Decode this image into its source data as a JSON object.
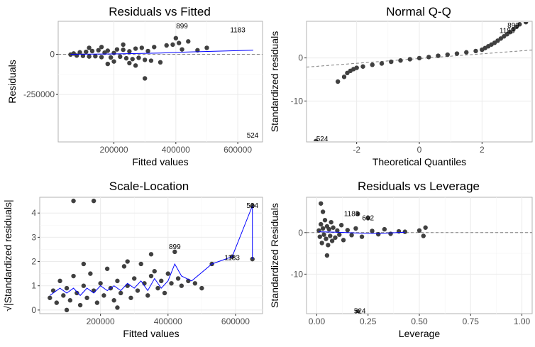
{
  "colors": {
    "points": "#404040",
    "smooth": "#0000ff",
    "reference": "#7f7f7f",
    "grid": "#ebebeb",
    "panel_border": "#b3b3b3"
  },
  "chart_data": [
    {
      "type": "scatter",
      "title": "Residuals vs Fitted",
      "xlabel": "Fitted values",
      "ylabel": "Residuals",
      "xlim": [
        20000,
        680000
      ],
      "ylim": [
        -545000,
        205000
      ],
      "xticks": [
        200000,
        400000,
        600000
      ],
      "yticks": [
        -250000,
        0
      ],
      "grid": true,
      "reference": {
        "kind": "hline",
        "y": 0
      },
      "points": [
        [
          60000,
          -2000
        ],
        [
          70000,
          5000
        ],
        [
          80000,
          -8000
        ],
        [
          90000,
          12000
        ],
        [
          100000,
          -10000
        ],
        [
          110000,
          15000
        ],
        [
          120000,
          -14000
        ],
        [
          130000,
          20000
        ],
        [
          140000,
          -12000
        ],
        [
          150000,
          25000
        ],
        [
          160000,
          -18000
        ],
        [
          170000,
          10000
        ],
        [
          180000,
          22000
        ],
        [
          190000,
          -20000
        ],
        [
          200000,
          8000
        ],
        [
          210000,
          30000
        ],
        [
          220000,
          -15000
        ],
        [
          230000,
          28000
        ],
        [
          240000,
          -25000
        ],
        [
          250000,
          18000
        ],
        [
          260000,
          -30000
        ],
        [
          270000,
          35000
        ],
        [
          280000,
          -22000
        ],
        [
          290000,
          40000
        ],
        [
          300000,
          -35000
        ],
        [
          310000,
          20000
        ],
        [
          320000,
          -40000
        ],
        [
          330000,
          45000
        ],
        [
          350000,
          -50000
        ],
        [
          370000,
          55000
        ],
        [
          390000,
          60000
        ],
        [
          400000,
          100000
        ],
        [
          410000,
          70000
        ],
        [
          420000,
          30000
        ],
        [
          440000,
          80000
        ],
        [
          300000,
          -150000
        ],
        [
          180000,
          -60000
        ],
        [
          230000,
          60000
        ],
        [
          270000,
          -70000
        ],
        [
          470000,
          25000
        ],
        [
          500000,
          40000
        ],
        [
          120000,
          40000
        ],
        [
          160000,
          45000
        ],
        [
          200000,
          -45000
        ],
        [
          250000,
          -55000
        ]
      ],
      "smooth": [
        [
          60000,
          0
        ],
        [
          200000,
          2000
        ],
        [
          350000,
          8000
        ],
        [
          450000,
          15000
        ],
        [
          650000,
          25000
        ]
      ],
      "labeled_points": [
        {
          "label": "899",
          "x": 420000,
          "y": 175000
        },
        {
          "label": "1183",
          "x": 600000,
          "y": 150000
        },
        {
          "label": "524",
          "x": 648000,
          "y": -505000
        }
      ]
    },
    {
      "type": "scatter",
      "title": "Normal Q-Q",
      "xlabel": "Theoretical Quantiles",
      "ylabel": "Standardized residuals",
      "xlim": [
        -3.6,
        3.6
      ],
      "ylim": [
        -19.5,
        8.5
      ],
      "xticks": [
        -2,
        0,
        2
      ],
      "yticks": [
        -10,
        0
      ],
      "grid": true,
      "reference": {
        "kind": "line",
        "intercept": -0.15,
        "slope": 0.55
      },
      "points": [
        [
          -3.3,
          -19.3
        ],
        [
          -2.6,
          -5.5
        ],
        [
          -2.4,
          -4.4
        ],
        [
          -2.3,
          -3.5
        ],
        [
          -2.2,
          -3.0
        ],
        [
          -2.1,
          -2.6
        ],
        [
          -2.0,
          -2.3
        ],
        [
          -1.8,
          -2.0
        ],
        [
          -1.5,
          -1.6
        ],
        [
          -1.2,
          -1.3
        ],
        [
          -0.9,
          -0.9
        ],
        [
          -0.6,
          -0.6
        ],
        [
          -0.3,
          -0.3
        ],
        [
          0.0,
          -0.05
        ],
        [
          0.3,
          0.2
        ],
        [
          0.6,
          0.5
        ],
        [
          0.9,
          0.75
        ],
        [
          1.2,
          1.0
        ],
        [
          1.5,
          1.3
        ],
        [
          1.8,
          1.6
        ],
        [
          2.0,
          1.9
        ],
        [
          2.1,
          2.3
        ],
        [
          2.2,
          2.7
        ],
        [
          2.3,
          3.1
        ],
        [
          2.4,
          3.5
        ],
        [
          2.5,
          4.0
        ],
        [
          2.6,
          4.5
        ],
        [
          2.7,
          5.0
        ],
        [
          2.8,
          5.5
        ],
        [
          2.9,
          6.0
        ],
        [
          3.0,
          6.6
        ],
        [
          3.1,
          7.2
        ],
        [
          3.2,
          7.8
        ],
        [
          3.4,
          8.3
        ]
      ],
      "labeled_points": [
        {
          "label": "899",
          "x": 3.0,
          "y": 7.5
        },
        {
          "label": "1183",
          "x": 2.8,
          "y": 6.3
        },
        {
          "label": "524",
          "x": -3.1,
          "y": -18.8
        }
      ]
    },
    {
      "type": "scatter",
      "title": "Scale-Location",
      "xlabel": "Fitted values",
      "ylabel": "√|Standardized residuals|",
      "xlim": [
        20000,
        680000
      ],
      "ylim": [
        -0.15,
        4.65
      ],
      "xticks": [
        200000,
        400000,
        600000
      ],
      "yticks": [
        0,
        1,
        2,
        3,
        4
      ],
      "grid": true,
      "points": [
        [
          50000,
          0.5
        ],
        [
          60000,
          0.8
        ],
        [
          70000,
          0.3
        ],
        [
          80000,
          1.2
        ],
        [
          90000,
          0.6
        ],
        [
          100000,
          0.9
        ],
        [
          110000,
          0.4
        ],
        [
          120000,
          1.4
        ],
        [
          130000,
          0.7
        ],
        [
          140000,
          0.2
        ],
        [
          150000,
          1.0
        ],
        [
          160000,
          0.5
        ],
        [
          170000,
          1.5
        ],
        [
          180000,
          0.8
        ],
        [
          190000,
          0.3
        ],
        [
          200000,
          1.1
        ],
        [
          210000,
          0.6
        ],
        [
          220000,
          1.7
        ],
        [
          230000,
          0.9
        ],
        [
          240000,
          0.4
        ],
        [
          250000,
          1.2
        ],
        [
          260000,
          0.7
        ],
        [
          270000,
          1.8
        ],
        [
          280000,
          1.0
        ],
        [
          290000,
          0.5
        ],
        [
          300000,
          1.3
        ],
        [
          310000,
          0.8
        ],
        [
          320000,
          1.9
        ],
        [
          330000,
          1.1
        ],
        [
          340000,
          0.6
        ],
        [
          350000,
          1.4
        ],
        [
          360000,
          1.6
        ],
        [
          370000,
          0.9
        ],
        [
          380000,
          1.2
        ],
        [
          390000,
          0.7
        ],
        [
          400000,
          1.5
        ],
        [
          410000,
          1.1
        ],
        [
          420000,
          2.4
        ],
        [
          430000,
          1.3
        ],
        [
          440000,
          1.0
        ],
        [
          460000,
          1.2
        ],
        [
          480000,
          1.1
        ],
        [
          500000,
          0.9
        ],
        [
          530000,
          1.9
        ],
        [
          590000,
          2.2
        ],
        [
          650000,
          4.3
        ],
        [
          650000,
          2.1
        ],
        [
          350000,
          2.3
        ],
        [
          280000,
          2.0
        ],
        [
          150000,
          1.9
        ],
        [
          100000,
          0.0
        ],
        [
          250000,
          0.1
        ],
        [
          120000,
          4.5
        ],
        [
          180000,
          4.5
        ]
      ],
      "smooth": [
        [
          50000,
          0.6
        ],
        [
          80000,
          0.9
        ],
        [
          100000,
          0.7
        ],
        [
          120000,
          0.9
        ],
        [
          140000,
          0.6
        ],
        [
          160000,
          0.9
        ],
        [
          180000,
          0.7
        ],
        [
          200000,
          1.0
        ],
        [
          220000,
          0.8
        ],
        [
          240000,
          1.0
        ],
        [
          260000,
          0.8
        ],
        [
          280000,
          1.1
        ],
        [
          300000,
          0.9
        ],
        [
          320000,
          1.2
        ],
        [
          340000,
          0.8
        ],
        [
          360000,
          1.3
        ],
        [
          380000,
          0.9
        ],
        [
          400000,
          1.2
        ],
        [
          420000,
          1.9
        ],
        [
          440000,
          1.4
        ],
        [
          470000,
          1.2
        ],
        [
          530000,
          1.9
        ],
        [
          590000,
          2.2
        ],
        [
          650000,
          4.3
        ],
        [
          650000,
          2.1
        ]
      ],
      "labeled_points": [
        {
          "label": "899",
          "x": 420000,
          "y": 2.6
        },
        {
          "label": "1183",
          "x": 590000,
          "y": 2.15
        },
        {
          "label": "524",
          "x": 650000,
          "y": 4.3
        }
      ]
    },
    {
      "type": "scatter",
      "title": "Residuals vs Leverage",
      "xlabel": "Leverage",
      "ylabel": "Standardized Residuals",
      "xlim": [
        -0.05,
        1.05
      ],
      "ylim": [
        -19.5,
        8.5
      ],
      "xticks": [
        0.0,
        0.25,
        0.5,
        0.75,
        1.0
      ],
      "xtick_labels": [
        "0.00",
        "0.25",
        "0.50",
        "0.75",
        "1.00"
      ],
      "yticks": [
        -10,
        0
      ],
      "grid": true,
      "reference": {
        "kind": "hline",
        "y": 0
      },
      "points": [
        [
          0.01,
          0.5
        ],
        [
          0.015,
          -1.0
        ],
        [
          0.02,
          2.0
        ],
        [
          0.025,
          -2.5
        ],
        [
          0.03,
          1.0
        ],
        [
          0.035,
          -0.5
        ],
        [
          0.04,
          3.0
        ],
        [
          0.045,
          -1.5
        ],
        [
          0.05,
          1.5
        ],
        [
          0.055,
          -3.0
        ],
        [
          0.06,
          0.8
        ],
        [
          0.065,
          -0.8
        ],
        [
          0.07,
          2.5
        ],
        [
          0.075,
          -2.0
        ],
        [
          0.08,
          1.2
        ],
        [
          0.09,
          -1.2
        ],
        [
          0.1,
          0.5
        ],
        [
          0.11,
          -0.5
        ],
        [
          0.12,
          1.8
        ],
        [
          0.13,
          -1.8
        ],
        [
          0.15,
          0.6
        ],
        [
          0.17,
          -0.6
        ],
        [
          0.19,
          1.0
        ],
        [
          0.2,
          4.5
        ],
        [
          0.22,
          -1.0
        ],
        [
          0.25,
          3.5
        ],
        [
          0.27,
          0.4
        ],
        [
          0.3,
          -0.4
        ],
        [
          0.33,
          0.8
        ],
        [
          0.36,
          -0.3
        ],
        [
          0.4,
          0.3
        ],
        [
          0.43,
          0.2
        ],
        [
          0.5,
          0.5
        ],
        [
          0.52,
          -0.8
        ],
        [
          0.53,
          1.2
        ],
        [
          0.2,
          -19.0
        ],
        [
          0.02,
          7.0
        ],
        [
          0.05,
          -5.5
        ],
        [
          0.03,
          5.0
        ]
      ],
      "smooth": [
        [
          0.01,
          0.2
        ],
        [
          0.1,
          0.1
        ],
        [
          0.2,
          -0.1
        ],
        [
          0.3,
          -0.2
        ],
        [
          0.43,
          0.1
        ]
      ],
      "labeled_points": [
        {
          "label": "1183",
          "x": 0.17,
          "y": 4.5
        },
        {
          "label": "692",
          "x": 0.25,
          "y": 3.5
        },
        {
          "label": "524",
          "x": 0.21,
          "y": -18.9
        }
      ]
    }
  ]
}
